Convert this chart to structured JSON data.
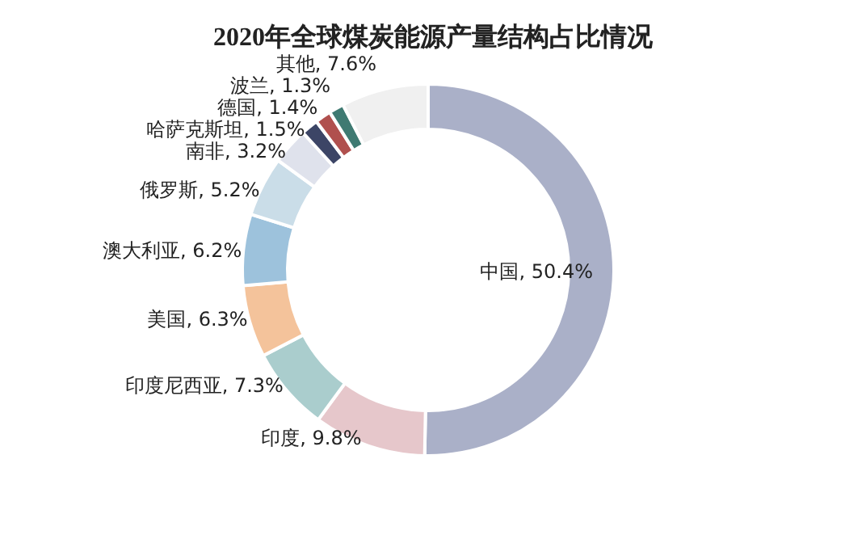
{
  "chart_data": {
    "type": "donut",
    "title": "2020年全球煤炭能源产量结构占比情况",
    "categories": [
      "中国",
      "印度",
      "印度尼西亚",
      "美国",
      "澳大利亚",
      "俄罗斯",
      "南非",
      "哈萨克斯坦",
      "德国",
      "波兰",
      "其他"
    ],
    "values": [
      50.4,
      9.8,
      7.3,
      6.3,
      6.2,
      5.2,
      3.2,
      1.5,
      1.4,
      1.3,
      7.6
    ],
    "colors": [
      "#aab0c8",
      "#e6c7cb",
      "#aacdcd",
      "#f4c39b",
      "#9dc2dc",
      "#cadde8",
      "#dfe2ec",
      "#3c4566",
      "#b0504e",
      "#3f7a72",
      "#f0f0f0"
    ],
    "value_labels": [
      ", 50.4%",
      ", 9.8%",
      ", 7.3%",
      ", 6.3%",
      ", 6.2%",
      ", 5.2%",
      ", 3.2%",
      ", 1.5%",
      ", 1.4%",
      ", 1.3%",
      ", 7.6%"
    ]
  }
}
